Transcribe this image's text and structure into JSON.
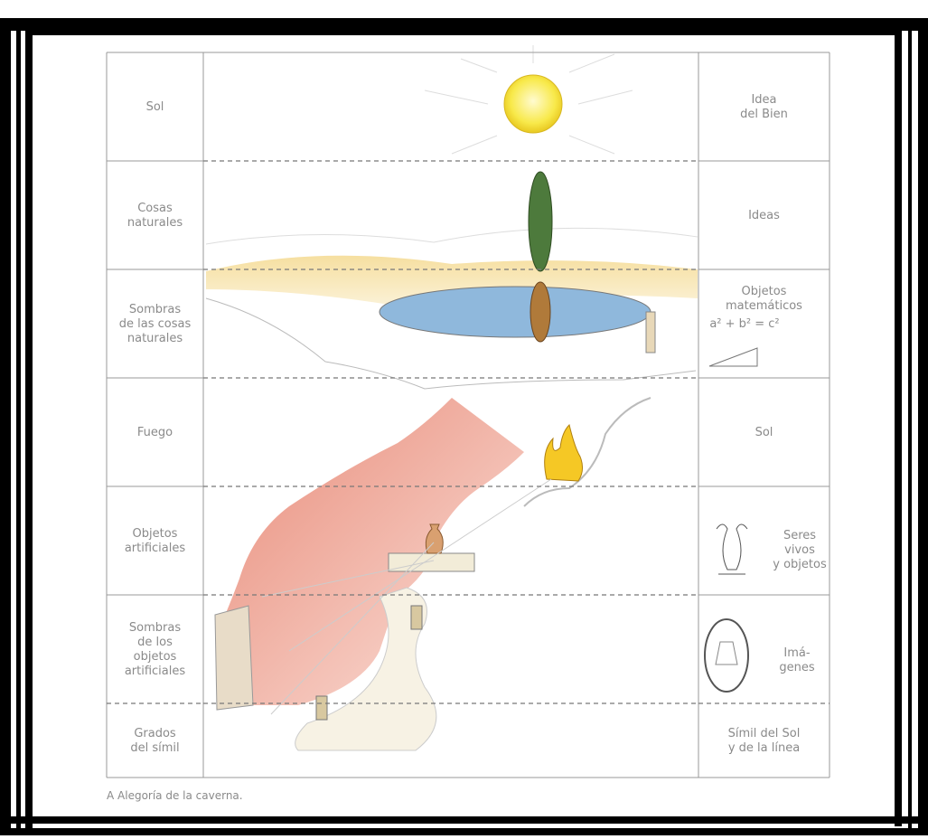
{
  "rows": [
    {
      "left": [
        "Sol"
      ],
      "right": [
        "Idea",
        "del Bien"
      ]
    },
    {
      "left": [
        "Cosas",
        "naturales"
      ],
      "right": [
        "Ideas"
      ]
    },
    {
      "left": [
        "Sombras",
        "de las cosas",
        "naturales"
      ],
      "right": [
        "Objetos",
        "matemáticos",
        "a² + b² = c²"
      ]
    },
    {
      "left": [
        "Fuego"
      ],
      "right": [
        "Sol"
      ]
    },
    {
      "left": [
        "Objetos",
        "artificiales"
      ],
      "right": [
        "Seres",
        "vivos",
        "y objetos"
      ]
    },
    {
      "left": [
        "Sombras",
        "de los",
        "objetos",
        "artificiales"
      ],
      "right": [
        "Imá-",
        "genes"
      ]
    },
    {
      "left": [
        "Grados",
        "del símil"
      ],
      "right": [
        "Símil del Sol",
        "y de la línea"
      ]
    }
  ],
  "caption": "A  Alegoría de la caverna."
}
